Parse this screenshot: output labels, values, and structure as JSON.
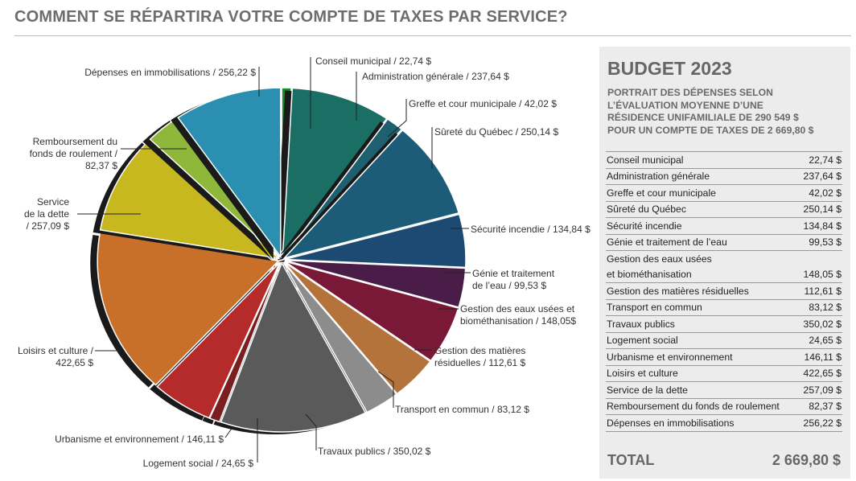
{
  "header": {
    "title": "COMMENT SE RÉPARTIRA VOTRE COMPTE DE TAXES PAR SERVICE?"
  },
  "panel": {
    "title": "BUDGET 2023",
    "subtitle_lines": [
      "PORTRAIT DES DÉPENSES SELON",
      "L’ÉVALUATION MOYENNE D’UNE",
      "RÉSIDENCE UNIFAMILIALE DE 290 549 $",
      "POUR UN COMPTE DE TAXES DE 2 669,80 $"
    ],
    "rows": [
      {
        "lines": [
          "Conseil municipal"
        ],
        "value": "22,74 $"
      },
      {
        "lines": [
          "Administration générale"
        ],
        "value": "237,64 $"
      },
      {
        "lines": [
          "Greffe et cour municipale"
        ],
        "value": "42,02 $"
      },
      {
        "lines": [
          "Sûreté du Québec"
        ],
        "value": "250,14 $"
      },
      {
        "lines": [
          "Sécurité incendie"
        ],
        "value": "134,84 $"
      },
      {
        "lines": [
          "Génie et traitement de l’eau"
        ],
        "value": "99,53 $"
      },
      {
        "lines": [
          "Gestion des eaux usées",
          "et biométhanisation"
        ],
        "value": "148,05 $"
      },
      {
        "lines": [
          "Gestion des matières résiduelles"
        ],
        "value": "112,61 $"
      },
      {
        "lines": [
          "Transport en commun"
        ],
        "value": "83,12 $"
      },
      {
        "lines": [
          "Travaux publics"
        ],
        "value": "350,02 $"
      },
      {
        "lines": [
          "Logement social"
        ],
        "value": "24,65 $"
      },
      {
        "lines": [
          "Urbanisme et environnement"
        ],
        "value": "146,11 $"
      },
      {
        "lines": [
          "Loisirs et culture"
        ],
        "value": "422,65 $"
      },
      {
        "lines": [
          "Service de la dette"
        ],
        "value": "257,09 $"
      },
      {
        "lines": [
          "Remboursement du fonds de roulement"
        ],
        "value": "82,37 $"
      },
      {
        "lines": [
          "Dépenses en immobilisations"
        ],
        "value": "256,22 $"
      }
    ],
    "total_label": "TOTAL",
    "total_value": "2 669,80 $"
  },
  "chart_data": {
    "type": "pie",
    "title": "",
    "unit": "$",
    "total": 2669.8,
    "slices": [
      {
        "label_lines": [
          "Conseil municipal / 22,74 $"
        ],
        "value": 22.74,
        "color": "#1d8a2a"
      },
      {
        "label_lines": [
          "Administration générale / 237,64 $"
        ],
        "value": 237.64,
        "color": "#1a6e63"
      },
      {
        "label_lines": [
          "Greffe et cour municipale / 42,02 $"
        ],
        "value": 42.02,
        "color": "#1f6070"
      },
      {
        "label_lines": [
          "Sûreté du Québec / 250,14 $"
        ],
        "value": 250.14,
        "color": "#1d5c78"
      },
      {
        "label_lines": [
          "Sécurité incendie / 134,84 $"
        ],
        "value": 134.84,
        "color": "#1d4a72"
      },
      {
        "label_lines": [
          "Génie et traitement",
          "de l’eau / 99,53 $"
        ],
        "value": 99.53,
        "color": "#4a1d48"
      },
      {
        "label_lines": [
          "Gestion des eaux usées et",
          "biométhanisation / 148,05$"
        ],
        "value": 148.05,
        "color": "#7a1838"
      },
      {
        "label_lines": [
          "Gestion des matières",
          "résiduelles / 112,61 $"
        ],
        "value": 112.61,
        "color": "#b5733c"
      },
      {
        "label_lines": [
          "Transport en commun / 83,12 $"
        ],
        "value": 83.12,
        "color": "#8c8c8c"
      },
      {
        "label_lines": [
          "Travaux publics / 350,02 $"
        ],
        "value": 350.02,
        "color": "#5a5a5a"
      },
      {
        "label_lines": [
          "Logement social / 24,65 $"
        ],
        "value": 24.65,
        "color": "#7a1e20"
      },
      {
        "label_lines": [
          "Urbanisme et environnement / 146,11 $"
        ],
        "value": 146.11,
        "color": "#b52a2a"
      },
      {
        "label_lines": [
          "Loisirs et culture  /",
          "422,65 $"
        ],
        "value": 422.65,
        "color": "#c8702a"
      },
      {
        "label_lines": [
          "Service",
          "de la dette",
          "/ 257,09 $"
        ],
        "value": 257.09,
        "color": "#c8b81f"
      },
      {
        "label_lines": [
          "Remboursement du",
          "fonds de roulement /",
          "82,37 $"
        ],
        "value": 82.37,
        "color": "#8fb83a"
      },
      {
        "label_lines": [
          "Dépenses en immobilisations / 256,22 $"
        ],
        "value": 256.22,
        "color": "#2a8fb0"
      }
    ]
  }
}
